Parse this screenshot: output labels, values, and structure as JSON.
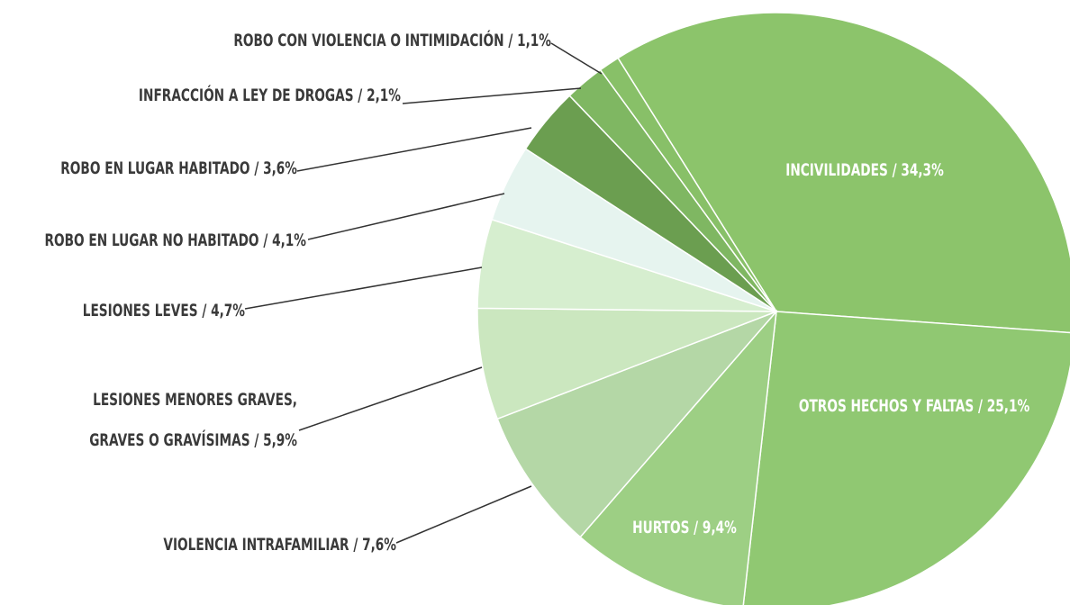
{
  "chart_data": {
    "type": "pie",
    "values": [
      34.3,
      25.1,
      9.4,
      7.6,
      5.9,
      4.7,
      4.1,
      3.6,
      2.1,
      1.1
    ],
    "value_labels": [
      "INCIVILIDADES / 34,3%",
      "OTROS HECHOS Y FALTAS / 25,1%",
      "HURTOS / 9,4%",
      "VIOLENCIA INTRAFAMILIAR / 7,6%",
      [
        "LESIONES MENORES GRAVES,",
        "GRAVES O GRAVÍSIMAS / 5,9%"
      ],
      "LESIONES LEVES / 4,7%",
      "ROBO EN LUGAR NO HABITADO / 4,1%",
      "ROBO EN LUGAR HABITADO / 3,6%",
      "INFRACCIÓN A LEY DE DROGAS / 2,1%",
      "ROBO CON VIOLENCIA O INTIMIDACIÓN / 1,1%"
    ],
    "colors": [
      "#8cc46b",
      "#90c872",
      "#9dcf84",
      "#b4d7a6",
      "#cbe7bf",
      "#d6eecf",
      "#e6f4ef",
      "#6b9e50",
      "#7fb762",
      "#88c068"
    ]
  }
}
